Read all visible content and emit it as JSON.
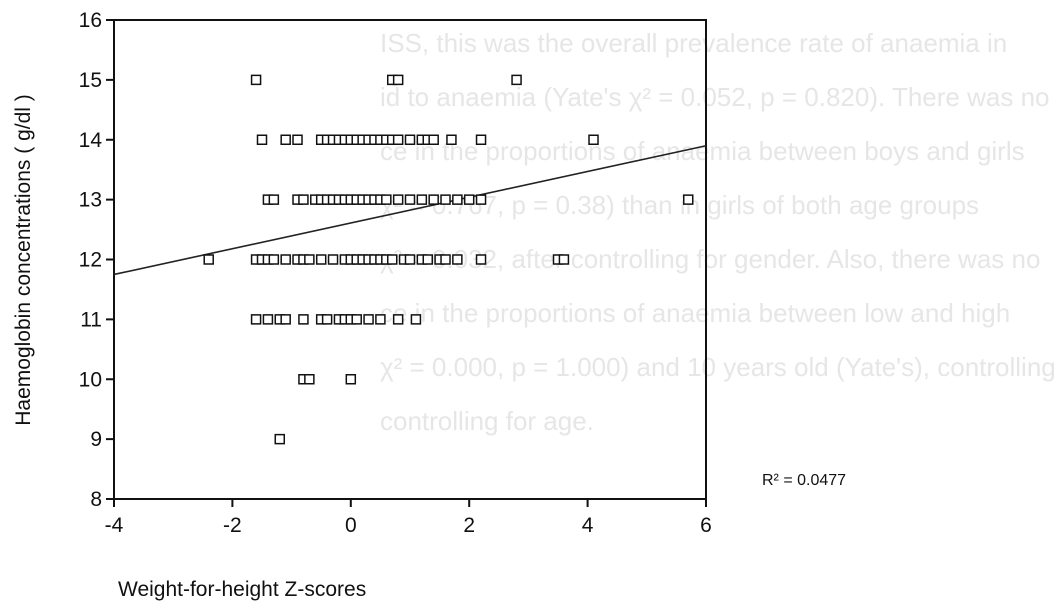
{
  "background_text": [
    "ISS, this was the overall prevalence rate of anaemia in",
    "id to anaemia (Yate's χ² = 0.052, p = 0.820). There was no",
    "ce in the proportions of anaemia between boys and girls",
    "χ² = 0.767, p = 0.38) than in girls of both age groups",
    "χ² = 0.032, after controlling for gender. Also, there was no",
    "ce in the proportions of anaemia between low and high",
    "χ² = 0.000, p = 1.000) and 10 years old (Yate's), controlling",
    "controlling for age."
  ],
  "chart_data": {
    "type": "scatter",
    "title": "",
    "xlabel": "Weight-for-height Z-scores",
    "ylabel": "Haemoglobin concentrations ( g/dl )",
    "xlim": [
      -4,
      6
    ],
    "ylim": [
      8,
      16
    ],
    "xticks": [
      -4,
      -2,
      0,
      2,
      4,
      6
    ],
    "yticks": [
      8,
      9,
      10,
      11,
      12,
      13,
      14,
      15,
      16
    ],
    "x_tick_labels": [
      "-4",
      "-2",
      "0",
      "2",
      "4",
      "6"
    ],
    "y_tick_labels": [
      "8",
      "9",
      "10",
      "11",
      "12",
      "13",
      "14",
      "15",
      "16"
    ],
    "marker": "open-square",
    "grid": false,
    "points": [
      {
        "x": -1.6,
        "y": 15
      },
      {
        "x": 0.7,
        "y": 15
      },
      {
        "x": 0.8,
        "y": 15
      },
      {
        "x": 2.8,
        "y": 15
      },
      {
        "x": -1.5,
        "y": 14
      },
      {
        "x": -1.1,
        "y": 14
      },
      {
        "x": -0.9,
        "y": 14
      },
      {
        "x": -0.5,
        "y": 14
      },
      {
        "x": -0.4,
        "y": 14
      },
      {
        "x": -0.3,
        "y": 14
      },
      {
        "x": -0.2,
        "y": 14
      },
      {
        "x": -0.1,
        "y": 14
      },
      {
        "x": 0.0,
        "y": 14
      },
      {
        "x": 0.1,
        "y": 14
      },
      {
        "x": 0.2,
        "y": 14
      },
      {
        "x": 0.3,
        "y": 14
      },
      {
        "x": 0.4,
        "y": 14
      },
      {
        "x": 0.5,
        "y": 14
      },
      {
        "x": 0.6,
        "y": 14
      },
      {
        "x": 0.7,
        "y": 14
      },
      {
        "x": 0.8,
        "y": 14
      },
      {
        "x": 1.0,
        "y": 14
      },
      {
        "x": 1.2,
        "y": 14
      },
      {
        "x": 1.3,
        "y": 14
      },
      {
        "x": 1.4,
        "y": 14
      },
      {
        "x": 1.7,
        "y": 14
      },
      {
        "x": 2.2,
        "y": 14
      },
      {
        "x": 4.1,
        "y": 14
      },
      {
        "x": -1.4,
        "y": 13
      },
      {
        "x": -1.3,
        "y": 13
      },
      {
        "x": -0.9,
        "y": 13
      },
      {
        "x": -0.8,
        "y": 13
      },
      {
        "x": -0.6,
        "y": 13
      },
      {
        "x": -0.5,
        "y": 13
      },
      {
        "x": -0.4,
        "y": 13
      },
      {
        "x": -0.3,
        "y": 13
      },
      {
        "x": -0.2,
        "y": 13
      },
      {
        "x": -0.1,
        "y": 13
      },
      {
        "x": 0.0,
        "y": 13
      },
      {
        "x": 0.1,
        "y": 13
      },
      {
        "x": 0.2,
        "y": 13
      },
      {
        "x": 0.3,
        "y": 13
      },
      {
        "x": 0.4,
        "y": 13
      },
      {
        "x": 0.5,
        "y": 13
      },
      {
        "x": 0.6,
        "y": 13
      },
      {
        "x": 0.8,
        "y": 13
      },
      {
        "x": 1.0,
        "y": 13
      },
      {
        "x": 1.2,
        "y": 13
      },
      {
        "x": 1.4,
        "y": 13
      },
      {
        "x": 1.6,
        "y": 13
      },
      {
        "x": 1.8,
        "y": 13
      },
      {
        "x": 2.0,
        "y": 13
      },
      {
        "x": 2.2,
        "y": 13
      },
      {
        "x": 5.7,
        "y": 13
      },
      {
        "x": -2.4,
        "y": 12
      },
      {
        "x": -1.6,
        "y": 12
      },
      {
        "x": -1.5,
        "y": 12
      },
      {
        "x": -1.4,
        "y": 12
      },
      {
        "x": -1.3,
        "y": 12
      },
      {
        "x": -1.1,
        "y": 12
      },
      {
        "x": -0.9,
        "y": 12
      },
      {
        "x": -0.8,
        "y": 12
      },
      {
        "x": -0.7,
        "y": 12
      },
      {
        "x": -0.5,
        "y": 12
      },
      {
        "x": -0.3,
        "y": 12
      },
      {
        "x": -0.1,
        "y": 12
      },
      {
        "x": 0.0,
        "y": 12
      },
      {
        "x": 0.1,
        "y": 12
      },
      {
        "x": 0.2,
        "y": 12
      },
      {
        "x": 0.3,
        "y": 12
      },
      {
        "x": 0.4,
        "y": 12
      },
      {
        "x": 0.5,
        "y": 12
      },
      {
        "x": 0.6,
        "y": 12
      },
      {
        "x": 0.7,
        "y": 12
      },
      {
        "x": 0.9,
        "y": 12
      },
      {
        "x": 1.0,
        "y": 12
      },
      {
        "x": 1.2,
        "y": 12
      },
      {
        "x": 1.3,
        "y": 12
      },
      {
        "x": 1.5,
        "y": 12
      },
      {
        "x": 1.6,
        "y": 12
      },
      {
        "x": 1.8,
        "y": 12
      },
      {
        "x": 2.2,
        "y": 12
      },
      {
        "x": 3.5,
        "y": 12
      },
      {
        "x": 3.6,
        "y": 12
      },
      {
        "x": -1.6,
        "y": 11
      },
      {
        "x": -1.4,
        "y": 11
      },
      {
        "x": -1.2,
        "y": 11
      },
      {
        "x": -1.1,
        "y": 11
      },
      {
        "x": -0.8,
        "y": 11
      },
      {
        "x": -0.5,
        "y": 11
      },
      {
        "x": -0.4,
        "y": 11
      },
      {
        "x": -0.2,
        "y": 11
      },
      {
        "x": -0.1,
        "y": 11
      },
      {
        "x": 0.0,
        "y": 11
      },
      {
        "x": 0.1,
        "y": 11
      },
      {
        "x": 0.3,
        "y": 11
      },
      {
        "x": 0.5,
        "y": 11
      },
      {
        "x": 0.8,
        "y": 11
      },
      {
        "x": 1.1,
        "y": 11
      },
      {
        "x": -0.8,
        "y": 10
      },
      {
        "x": -0.7,
        "y": 10
      },
      {
        "x": 0.0,
        "y": 10
      },
      {
        "x": -1.2,
        "y": 9
      }
    ],
    "fit_line": {
      "type": "linear",
      "x": [
        -4,
        6
      ],
      "y": [
        11.75,
        13.9
      ],
      "r_squared_label": "R² = 0.0477"
    }
  }
}
